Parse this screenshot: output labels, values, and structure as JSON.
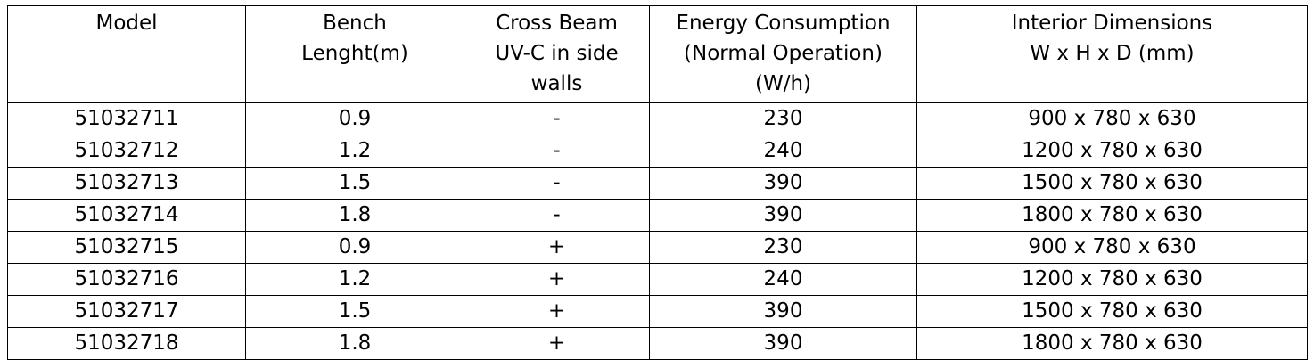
{
  "table": {
    "header": [
      [
        "Model"
      ],
      [
        "Bench",
        "Lenght(m)"
      ],
      [
        "Cross Beam",
        "UV-C in side",
        "walls"
      ],
      [
        "Energy Consumption",
        "(Normal Operation)",
        "(W/h)"
      ],
      [
        "Interior Dimensions",
        "W x H x D (mm)"
      ]
    ],
    "rows": [
      [
        "51032711",
        "0.9",
        "-",
        "230",
        "900 x 780 x 630"
      ],
      [
        "51032712",
        "1.2",
        "-",
        "240",
        "1200 x 780 x 630"
      ],
      [
        "51032713",
        "1.5",
        "-",
        "390",
        "1500 x 780 x 630"
      ],
      [
        "51032714",
        "1.8",
        "-",
        "390",
        "1800 x 780 x 630"
      ],
      [
        "51032715",
        "0.9",
        "+",
        "230",
        "900 x 780 x 630"
      ],
      [
        "51032716",
        "1.2",
        "+",
        "240",
        "1200 x 780 x 630"
      ],
      [
        "51032717",
        "1.5",
        "+",
        "390",
        "1500 x 780 x 630"
      ],
      [
        "51032718",
        "1.8",
        "+",
        "390",
        "1800 x 780 x 630"
      ]
    ]
  }
}
